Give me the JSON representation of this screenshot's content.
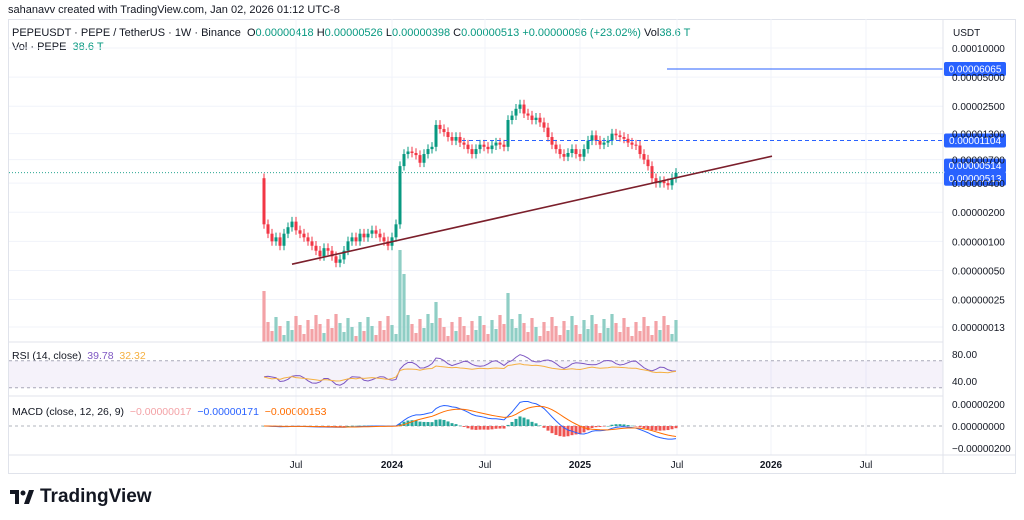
{
  "header": {
    "credit": "sahanavv created with TradingView.com, Jan 02, 2026 01:12 UTC-8",
    "symbol": "PEPEUSDT · PEPE / TetherUS · 1W · Binance",
    "o_label": "O",
    "o_value": "0.00000418",
    "h_label": "H",
    "h_value": "0.00000526",
    "l_label": "L",
    "l_value": "0.00000398",
    "c_label": "C",
    "c_value": "0.00000513",
    "change": "+0.00000096 (+23.02%)",
    "vol_label": "Vol",
    "vol_value": "38.6 T",
    "vol_line_label": "Vol · PEPE",
    "vol_line_value": "38.6 T"
  },
  "currency": "USDT",
  "rsi": {
    "label": "RSI (14, close)",
    "value1": "39.78",
    "value2": "32.32"
  },
  "macd": {
    "label": "MACD (close, 12, 26, 9)",
    "hist": "−0.00000017",
    "macd": "−0.00000171",
    "signal": "−0.00000153"
  },
  "brand": "TradingView",
  "colors": {
    "up": "#089981",
    "down": "#f23645",
    "vol_up": "#8fcec5",
    "vol_down": "#f3a2a6",
    "trendline": "#7b1f2b",
    "hline": "#2962ff",
    "rsi": "#7e57c2",
    "rsi_ma": "#f5b041",
    "macd": "#2962ff",
    "signal": "#ff6d00"
  },
  "chart_data": {
    "type": "candlestick",
    "price_axis_ticks": [
      "0.00010000",
      "0.00005000",
      "0.00002500",
      "0.00001300",
      "0.00000700",
      "0.00000400",
      "0.00000200",
      "0.00000100",
      "0.00000050",
      "0.00000025",
      "0.00000013"
    ],
    "price_labels": [
      {
        "value": 6.065e-05,
        "text": "0.00006065",
        "style": "solid"
      },
      {
        "value": 1.104e-05,
        "text": "0.00001104",
        "style": "dashed"
      },
      {
        "value": 5.14e-06,
        "text": "0.00000514",
        "style": "trendline"
      },
      {
        "value": 5.13e-06,
        "text": "0.00000513",
        "style": "last"
      }
    ],
    "time_axis": [
      "Jul",
      "2024",
      "Jul",
      "2025",
      "Jul",
      "2026",
      "Jul"
    ],
    "rsi_axis": [
      "80.00",
      "40.00"
    ],
    "macd_axis": [
      "0.00000200",
      "0.00000000",
      "−0.00000200"
    ],
    "trendline": {
      "from": {
        "week": 7,
        "value": 5.8e-07
      },
      "to": {
        "week": 127,
        "value": 7.6e-06
      }
    },
    "close_series": [
      1.5e-06,
      1.2e-06,
      1e-06,
      1.1e-06,
      9e-07,
      1.2e-06,
      1.4e-06,
      1.6e-06,
      1.3e-06,
      1.2e-06,
      1.1e-06,
      1e-06,
      9e-07,
      8e-07,
      7e-07,
      8.5e-07,
      8e-07,
      7e-07,
      6e-07,
      6.5e-07,
      8e-07,
      1e-06,
      1.1e-06,
      1e-06,
      1.2e-06,
      1.1e-06,
      1.2e-06,
      1.3e-06,
      1.2e-06,
      1.1e-06,
      1e-06,
      9e-07,
      1.1e-06,
      1.5e-06,
      6e-06,
      8e-06,
      8.5e-06,
      8.2e-06,
      7.8e-06,
      6.5e-06,
      8e-06,
      9e-06,
      9.5e-06,
      1.6e-05,
      1.45e-05,
      1.35e-05,
      1.2e-05,
      1.1e-05,
      1.2e-05,
      1.05e-05,
      1e-05,
      9e-06,
      8e-06,
      9e-06,
      1e-05,
      9.5e-06,
      9e-06,
      9.8e-06,
      1.05e-05,
      1e-05,
      9.5e-06,
      1.8e-05,
      2e-05,
      2.35e-05,
      2.6e-05,
      2.1e-05,
      2e-05,
      1.8e-05,
      1.9e-05,
      1.7e-05,
      1.5e-05,
      1.2e-05,
      1e-05,
      9e-06,
      8e-06,
      7.5e-06,
      8.2e-06,
      9e-06,
      8e-06,
      7.5e-06,
      9e-06,
      1.1e-05,
      1.25e-05,
      1.1e-05,
      1e-05,
      1.05e-05,
      1.1e-05,
      1.3e-05,
      1.25e-05,
      1.2e-05,
      1.15e-05,
      1.05e-05,
      1e-05,
      9.8e-06,
      8e-06,
      7e-06,
      6e-06,
      4.5e-06,
      4e-06,
      4.2e-06,
      4e-06,
      3.8e-06,
      4.5e-06,
      5.1e-06
    ],
    "first_week_label_index": {
      "Jul_2023": 14,
      "2024": 40,
      "Jul_2024": 66,
      "2025": 92,
      "Jul_2025": 118,
      "2026": 144
    }
  }
}
